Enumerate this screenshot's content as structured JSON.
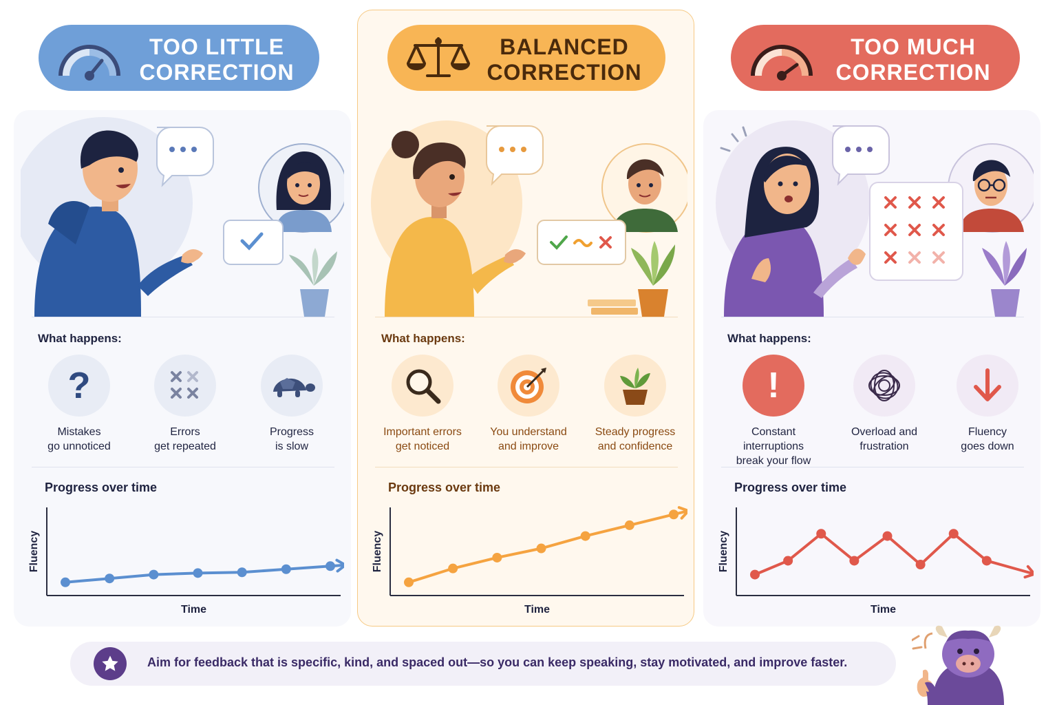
{
  "columns": [
    {
      "heading": "TOO LITTLE CORRECTION",
      "heading_line1": "TOO LITTLE",
      "heading_line2": "CORRECTION",
      "accent": "#6f9fd8",
      "what_title": "What happens:",
      "items": [
        {
          "icon": "question-icon",
          "line1": "Mistakes",
          "line2": "go unnoticed"
        },
        {
          "icon": "repeat-x-icon",
          "line1": "Errors",
          "line2": "get repeated"
        },
        {
          "icon": "turtle-icon",
          "line1": "Progress",
          "line2": "is slow"
        }
      ],
      "progress_title": "Progress over time",
      "ylabel": "Fluency",
      "xlabel": "Time"
    },
    {
      "heading": "BALANCED CORRECTION",
      "heading_line1": "BALANCED",
      "heading_line2": "CORRECTION",
      "accent": "#f8b555",
      "what_title": "What happens:",
      "items": [
        {
          "icon": "magnifier-icon",
          "line1": "Important errors",
          "line2": "get noticed"
        },
        {
          "icon": "target-icon",
          "line1": "You understand",
          "line2": "and improve"
        },
        {
          "icon": "plant-icon",
          "line1": "Steady progress",
          "line2": "and confidence"
        }
      ],
      "progress_title": "Progress over time",
      "ylabel": "Fluency",
      "xlabel": "Time"
    },
    {
      "heading": "TOO MUCH CORRECTION",
      "heading_line1": "TOO MUCH",
      "heading_line2": "CORRECTION",
      "accent": "#e36b5e",
      "what_title": "What happens:",
      "items": [
        {
          "icon": "exclamation-icon",
          "line1": "Constant interruptions",
          "line2": "break your flow"
        },
        {
          "icon": "tangle-icon",
          "line1": "Overload and",
          "line2": "frustration"
        },
        {
          "icon": "down-arrow-icon",
          "line1": "Fluency",
          "line2": "goes down"
        }
      ],
      "progress_title": "Progress over time",
      "ylabel": "Fluency",
      "xlabel": "Time"
    }
  ],
  "chart_data": [
    {
      "type": "line",
      "title": "Progress over time",
      "xlabel": "Time",
      "ylabel": "Fluency",
      "x": [
        1,
        2,
        3,
        4,
        5,
        6,
        7
      ],
      "series": [
        {
          "values": [
            1.0,
            1.5,
            2.0,
            2.2,
            2.3,
            2.7,
            3.1
          ]
        }
      ],
      "ylim": [
        0,
        10
      ],
      "color": "#5b8fd0"
    },
    {
      "type": "line",
      "title": "Progress over time",
      "xlabel": "Time",
      "ylabel": "Fluency",
      "x": [
        1,
        2,
        3,
        4,
        5,
        6,
        7
      ],
      "series": [
        {
          "values": [
            1.0,
            2.8,
            4.2,
            5.4,
            7.0,
            8.4,
            9.8
          ]
        }
      ],
      "ylim": [
        0,
        10
      ],
      "color": "#f5a340"
    },
    {
      "type": "line",
      "title": "Progress over time",
      "xlabel": "Time",
      "ylabel": "Fluency",
      "x": [
        1,
        2,
        3,
        4,
        5,
        6,
        7,
        8,
        9
      ],
      "series": [
        {
          "values": [
            2.0,
            3.8,
            7.3,
            3.8,
            7.0,
            3.3,
            7.3,
            3.8,
            2.6
          ]
        }
      ],
      "ylim": [
        0,
        10
      ],
      "color": "#e0584b"
    }
  ],
  "banner": {
    "text": "Aim for feedback that is specific, kind, and spaced out—so you can keep speaking, stay motivated, and improve faster.",
    "icon": "star-icon"
  }
}
